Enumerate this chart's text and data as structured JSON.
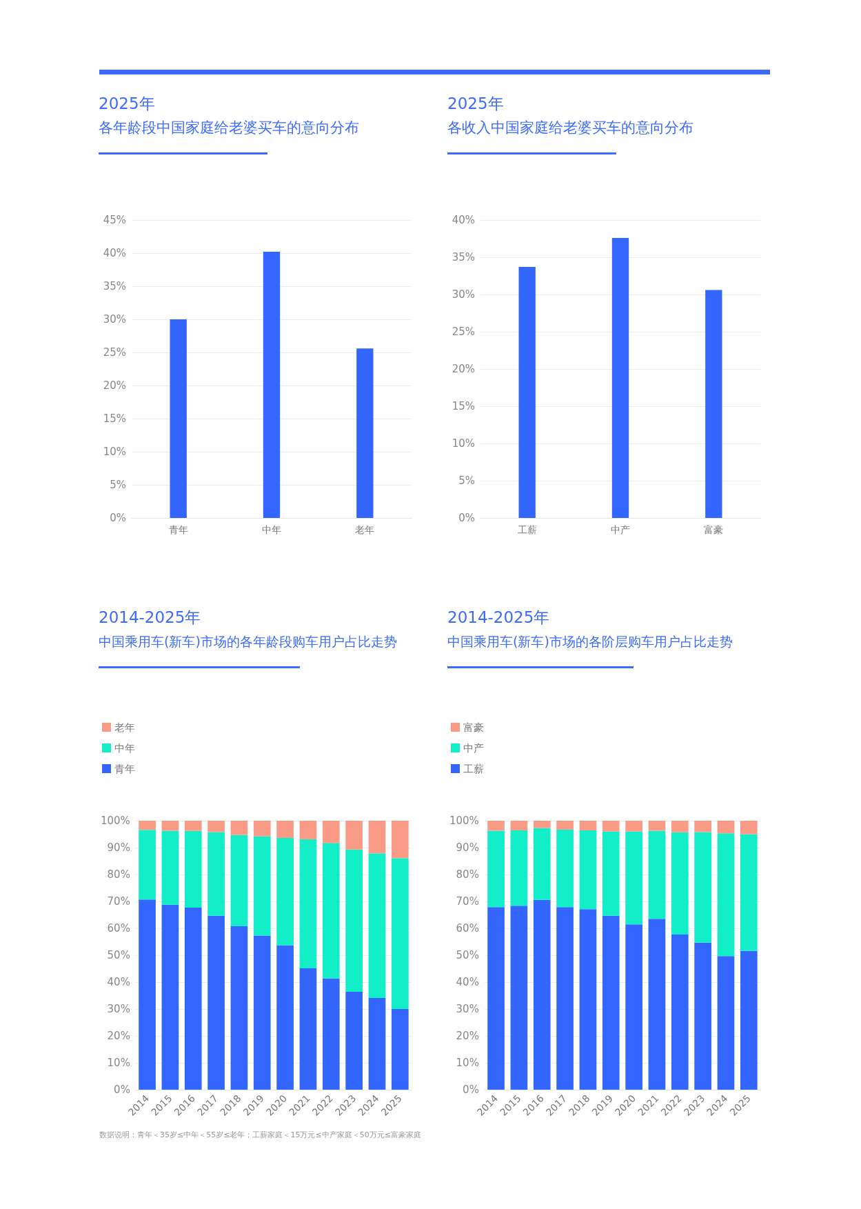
{
  "chart_data": [
    {
      "type": "bar",
      "title": "2025年",
      "subtitle": "各年龄段中国家庭给老婆买车的意向分布",
      "categories": [
        "青年",
        "中年",
        "老年"
      ],
      "values": [
        30,
        40.2,
        25.6
      ],
      "color": "#3366ff",
      "ylim": [
        0,
        45
      ],
      "yticks": [
        {
          "value": 0,
          "label": "0%"
        },
        {
          "value": 5,
          "label": "5%"
        },
        {
          "value": 10,
          "label": "10%"
        },
        {
          "value": 15,
          "label": "15%"
        },
        {
          "value": 20,
          "label": "20%"
        },
        {
          "value": 25,
          "label": "25%"
        },
        {
          "value": 30,
          "label": "30%"
        },
        {
          "value": 35,
          "label": "35%"
        },
        {
          "value": 40,
          "label": "40%"
        },
        {
          "value": 45,
          "label": "45%"
        }
      ],
      "grid": "y"
    },
    {
      "type": "bar",
      "title": "2025年",
      "subtitle": "各收入中国家庭给老婆买车的意向分布",
      "categories": [
        "工薪",
        "中产",
        "富豪"
      ],
      "values": [
        33.7,
        37.6,
        30.6
      ],
      "color": "#3366ff",
      "ylim": [
        0,
        40
      ],
      "yticks": [
        {
          "value": 0,
          "label": "0%"
        },
        {
          "value": 5,
          "label": "5%"
        },
        {
          "value": 10,
          "label": "10%"
        },
        {
          "value": 15,
          "label": "15%"
        },
        {
          "value": 20,
          "label": "20%"
        },
        {
          "value": 25,
          "label": "25%"
        },
        {
          "value": 30,
          "label": "30%"
        },
        {
          "value": 35,
          "label": "35%"
        },
        {
          "value": 40,
          "label": "40%"
        }
      ],
      "grid": "y"
    },
    {
      "type": "bar",
      "stacked": true,
      "title": "2014-2025年",
      "subtitle": "中国乘用车(新车)市场的各年龄段购车用户占比走势",
      "categories": [
        "2014",
        "2015",
        "2016",
        "2017",
        "2018",
        "2019",
        "2020",
        "2021",
        "2022",
        "2023",
        "2024",
        "2025"
      ],
      "series": [
        {
          "name": "青年",
          "color": "#3366ff",
          "values": [
            70.7,
            68.8,
            67.7,
            64.7,
            60.8,
            57.3,
            53.7,
            45.1,
            41.4,
            36.4,
            34.1,
            30.0
          ]
        },
        {
          "name": "中年",
          "color": "#12efc8",
          "values": [
            25.9,
            27.5,
            28.5,
            31.1,
            33.9,
            36.9,
            39.9,
            48.0,
            50.3,
            52.9,
            53.8,
            56.1
          ]
        },
        {
          "name": "老年",
          "color": "#f99b87",
          "values": [
            3.4,
            3.7,
            3.8,
            4.2,
            5.3,
            5.8,
            6.4,
            6.9,
            8.3,
            10.7,
            12.1,
            13.9
          ]
        }
      ],
      "ylim": [
        0,
        100
      ],
      "yticks": [
        {
          "value": 0,
          "label": "0%"
        },
        {
          "value": 10,
          "label": "10%"
        },
        {
          "value": 20,
          "label": "20%"
        },
        {
          "value": 30,
          "label": "30%"
        },
        {
          "value": 40,
          "label": "40%"
        },
        {
          "value": 50,
          "label": "50%"
        },
        {
          "value": 60,
          "label": "60%"
        },
        {
          "value": 70,
          "label": "70%"
        },
        {
          "value": 80,
          "label": "80%"
        },
        {
          "value": 90,
          "label": "90%"
        },
        {
          "value": 100,
          "label": "100%"
        }
      ],
      "grid": "y",
      "legend": "top left"
    },
    {
      "type": "bar",
      "stacked": true,
      "title": "2014-2025年",
      "subtitle": "中国乘用车(新车)市场的各阶层购车用户占比走势",
      "categories": [
        "2014",
        "2015",
        "2016",
        "2017",
        "2018",
        "2019",
        "2020",
        "2021",
        "2022",
        "2023",
        "2024",
        "2025"
      ],
      "series": [
        {
          "name": "工薪",
          "color": "#3366ff",
          "values": [
            67.9,
            68.4,
            70.6,
            67.9,
            67.1,
            64.7,
            61.5,
            63.5,
            57.7,
            54.7,
            49.7,
            51.6
          ]
        },
        {
          "name": "中产",
          "color": "#12efc8",
          "values": [
            28.4,
            28.0,
            26.7,
            28.8,
            29.3,
            31.3,
            34.5,
            32.8,
            38.0,
            41.1,
            45.6,
            43.4
          ]
        },
        {
          "name": "富豪",
          "color": "#f99b87",
          "values": [
            3.7,
            3.6,
            2.7,
            3.3,
            3.6,
            4.0,
            4.0,
            3.7,
            4.3,
            4.2,
            4.7,
            5.0
          ]
        }
      ],
      "ylim": [
        0,
        100
      ],
      "yticks": [
        {
          "value": 0,
          "label": "0%"
        },
        {
          "value": 10,
          "label": "10%"
        },
        {
          "value": 20,
          "label": "20%"
        },
        {
          "value": 30,
          "label": "30%"
        },
        {
          "value": 40,
          "label": "40%"
        },
        {
          "value": 50,
          "label": "50%"
        },
        {
          "value": 60,
          "label": "60%"
        },
        {
          "value": 70,
          "label": "70%"
        },
        {
          "value": 80,
          "label": "80%"
        },
        {
          "value": 90,
          "label": "90%"
        },
        {
          "value": 100,
          "label": "100%"
        }
      ],
      "grid": "y",
      "legend": "top left",
      "annotations": [
        "数据说明：青年＜35岁≤中年＜55岁≤老年；工薪家庭＜15万元≤中产家庭＜50万元≤富豪家庭"
      ]
    }
  ]
}
